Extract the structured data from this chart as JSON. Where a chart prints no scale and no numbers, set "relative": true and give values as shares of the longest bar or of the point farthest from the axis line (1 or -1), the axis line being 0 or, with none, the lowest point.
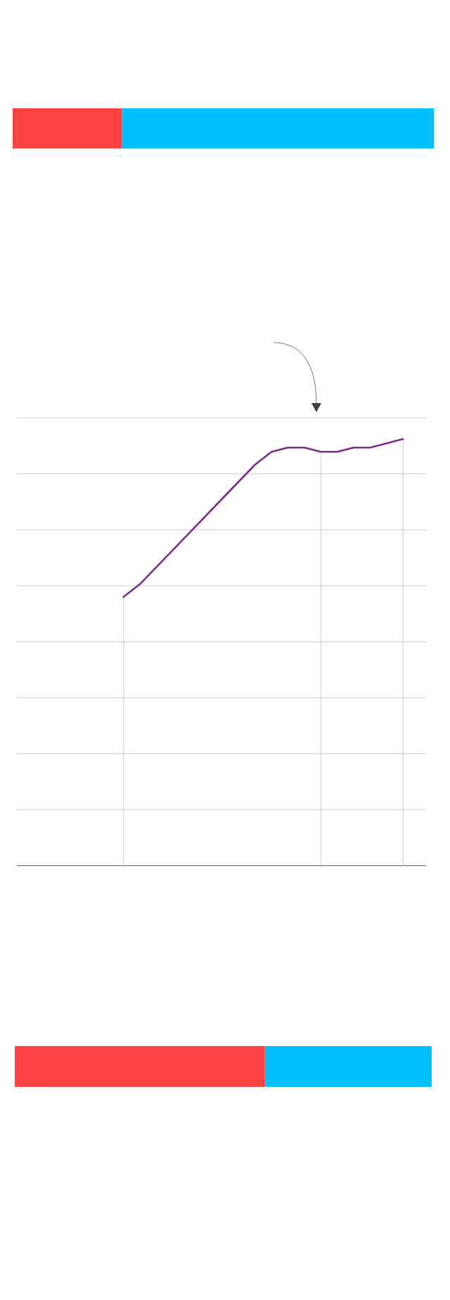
{
  "chart_data": [
    {
      "type": "bar",
      "orientation": "horizontal",
      "stacked": true,
      "relative": true,
      "categories": [
        null
      ],
      "series": [
        {
          "color": "#ff4343",
          "values": [
            0.26
          ]
        },
        {
          "color": "#00bfff",
          "values": [
            0.74
          ]
        }
      ]
    },
    {
      "type": "line",
      "relative": true,
      "categories": [
        null,
        null,
        null,
        null,
        null,
        null,
        null,
        null,
        null,
        null,
        null,
        null,
        null,
        null,
        null,
        null,
        null,
        null
      ],
      "grid": "y",
      "series": [
        {
          "color": "#80298f",
          "values": [
            0.63,
            0.66,
            0.7,
            0.74,
            0.78,
            0.82,
            0.86,
            0.9,
            0.94,
            0.97,
            0.98,
            0.98,
            0.97,
            0.97,
            0.98,
            0.98,
            0.99,
            1.0
          ]
        }
      ]
    },
    {
      "type": "bar",
      "orientation": "horizontal",
      "stacked": true,
      "relative": true,
      "categories": [
        null
      ],
      "series": [
        {
          "color": "#ff4343",
          "values": [
            0.6
          ]
        },
        {
          "color": "#00bfff",
          "values": [
            0.4
          ]
        }
      ]
    }
  ]
}
